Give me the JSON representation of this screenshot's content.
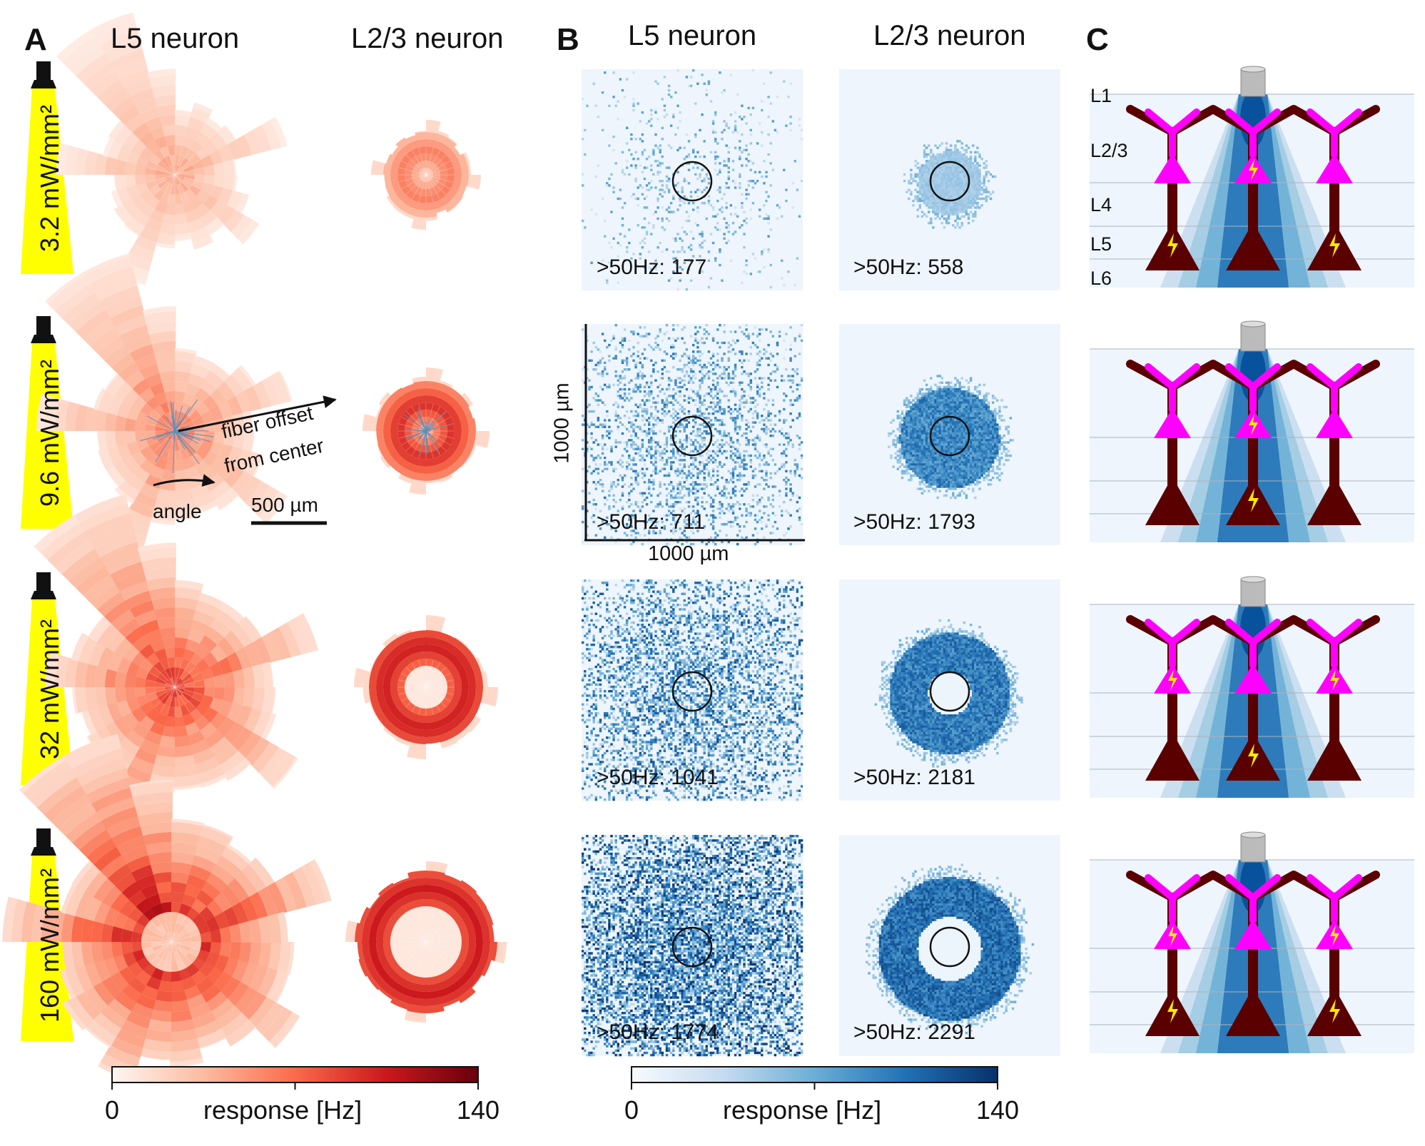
{
  "panels": {
    "A": "A",
    "B": "B",
    "C": "C"
  },
  "column_titles": {
    "l5": "L5 neuron",
    "l23": "L2/3 neuron"
  },
  "intensities": [
    "3.2 mW/mm²",
    "9.6 mW/mm²",
    "32 mW/mm²",
    "160 mW/mm²"
  ],
  "annotations": {
    "fiber_offset_line1": "fiber offset",
    "fiber_offset_line2": "from center",
    "angle": "angle",
    "scalebar": "500 µm"
  },
  "axis_labels": {
    "x": "1000 µm",
    "y": "1000 µm"
  },
  "counts": {
    "l5": [
      ">50Hz: 177",
      ">50Hz: 711",
      ">50Hz: 1041",
      ">50Hz: 1774"
    ],
    "l23": [
      ">50Hz: 558",
      ">50Hz: 1793",
      ">50Hz: 2181",
      ">50Hz: 2291"
    ]
  },
  "layers": [
    "L1",
    "L2/3",
    "L4",
    "L5",
    "L6"
  ],
  "colorbars": {
    "red": {
      "min": "0",
      "max": "140",
      "label": "response [Hz]",
      "color_low": "#fff5f0",
      "color_high": "#67000d"
    },
    "blue": {
      "min": "0",
      "max": "140",
      "label": "response [Hz]",
      "color_low": "#f7fbff",
      "color_high": "#08306b"
    }
  },
  "colors": {
    "beam_yellow": "#ffff00",
    "dendrite_magenta": "#ff00ff",
    "neuron_maroon": "#5a0000",
    "spike_yellow": "#ffe800",
    "fiber_gray": "#bbbbbb"
  },
  "spiking": [
    {
      "l23": [
        false,
        true,
        false
      ],
      "l5": [
        true,
        false,
        true
      ]
    },
    {
      "l23": [
        false,
        true,
        false
      ],
      "l5": [
        false,
        true,
        false
      ]
    },
    {
      "l23": [
        true,
        false,
        true
      ],
      "l5": [
        false,
        true,
        false
      ]
    },
    {
      "l23": [
        true,
        false,
        true
      ],
      "l5": [
        true,
        false,
        true
      ]
    }
  ],
  "polar_levels": {
    "l5_peak": [
      0.35,
      0.5,
      0.7,
      0.95
    ],
    "l23_peak": [
      0.45,
      0.7,
      0.75,
      0.75
    ]
  }
}
